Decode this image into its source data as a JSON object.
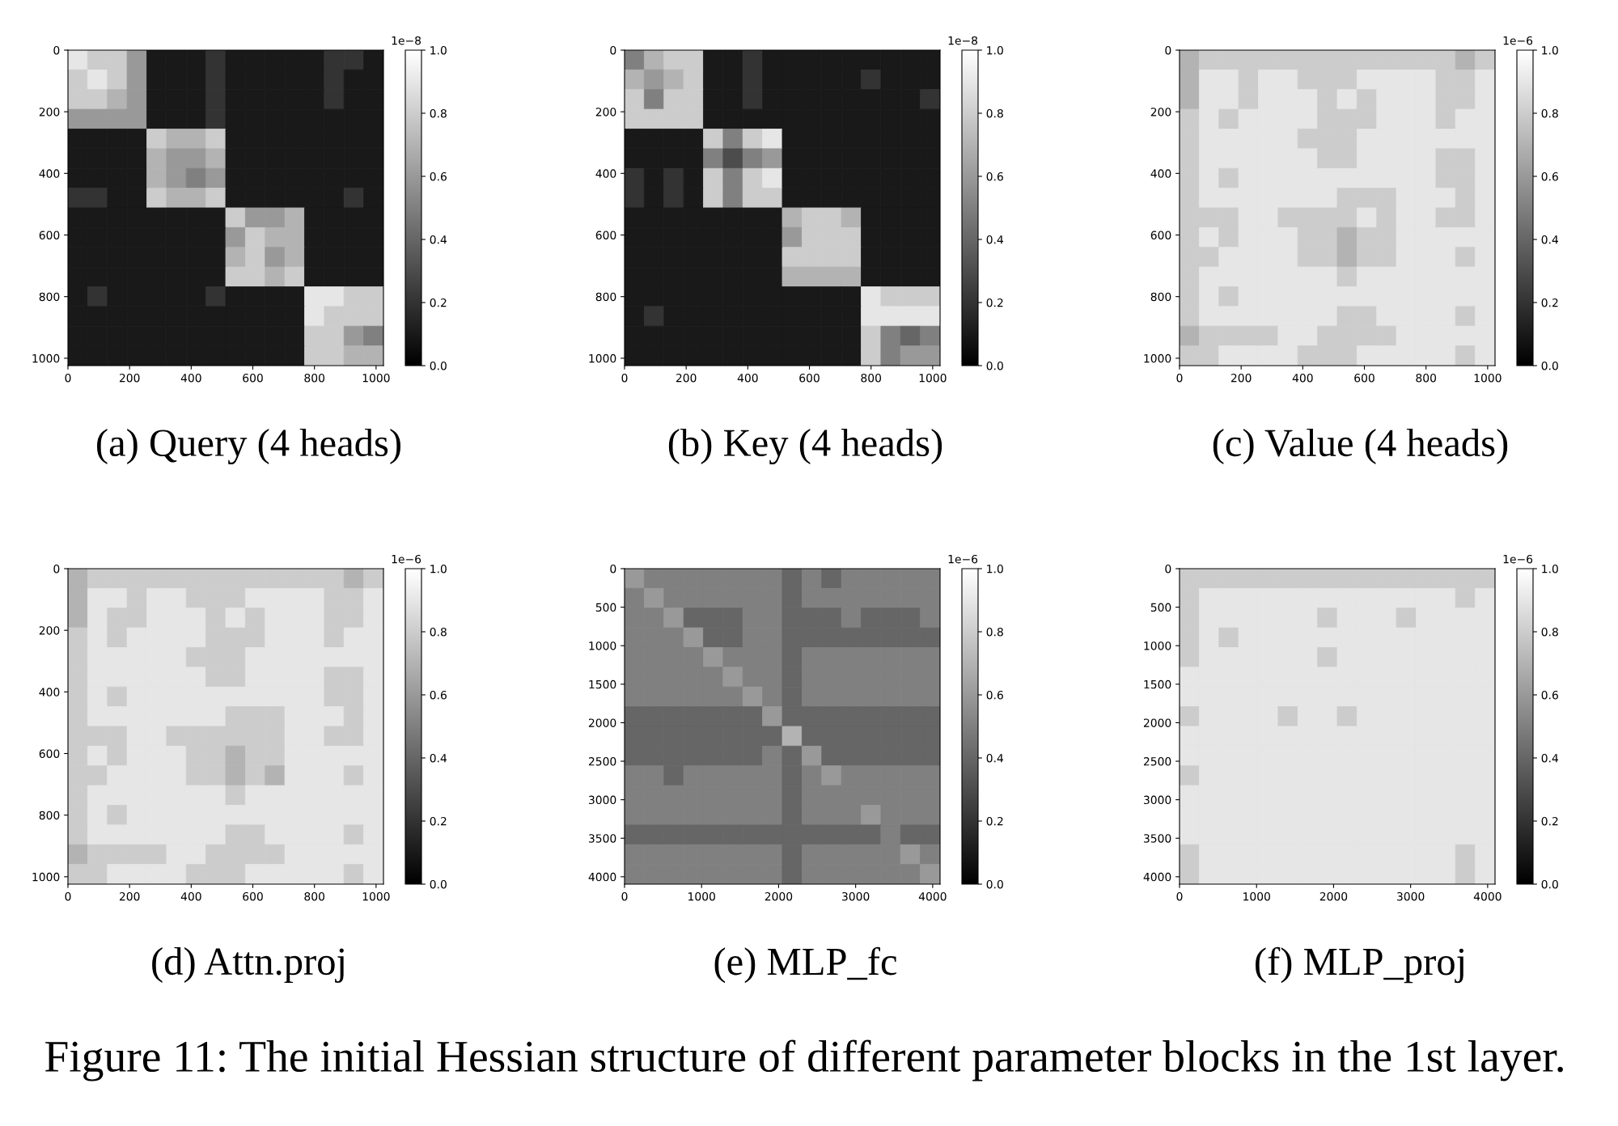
{
  "chart_data": [
    {
      "type": "heatmap",
      "title": "(a) Query (4 heads)",
      "xlim": [
        0,
        1024
      ],
      "ylim": [
        1024,
        0
      ],
      "xticks": [
        0,
        200,
        400,
        600,
        800,
        1000
      ],
      "yticks": [
        0,
        200,
        400,
        600,
        800,
        1000
      ],
      "clim": [
        0,
        1
      ],
      "cticks": [
        {
          "value": 0,
          "label": "0.0"
        },
        {
          "value": 0.2,
          "label": "0.2"
        },
        {
          "value": 0.4,
          "label": "0.4"
        },
        {
          "value": 0.6,
          "label": "0.6"
        },
        {
          "value": 0.8,
          "label": "0.8"
        },
        {
          "value": 1,
          "label": "1.0"
        }
      ],
      "clabel": "1e−8",
      "cells": [
        [
          0.9,
          0.8,
          0.8,
          0.6,
          0.1,
          0.1,
          0.1,
          0.2,
          0.1,
          0.1,
          0.1,
          0.1,
          0.1,
          0.2,
          0.2,
          0.1
        ],
        [
          0.8,
          0.9,
          0.8,
          0.6,
          0.1,
          0.1,
          0.1,
          0.2,
          0.1,
          0.1,
          0.1,
          0.1,
          0.1,
          0.2,
          0.1,
          0.1
        ],
        [
          0.8,
          0.8,
          0.7,
          0.6,
          0.1,
          0.1,
          0.1,
          0.2,
          0.1,
          0.1,
          0.1,
          0.1,
          0.1,
          0.2,
          0.1,
          0.1
        ],
        [
          0.6,
          0.6,
          0.6,
          0.6,
          0.1,
          0.1,
          0.1,
          0.2,
          0.1,
          0.1,
          0.1,
          0.1,
          0.1,
          0.1,
          0.1,
          0.1
        ],
        [
          0.1,
          0.1,
          0.1,
          0.1,
          0.8,
          0.7,
          0.7,
          0.8,
          0.1,
          0.1,
          0.1,
          0.1,
          0.1,
          0.1,
          0.1,
          0.1
        ],
        [
          0.1,
          0.1,
          0.1,
          0.1,
          0.7,
          0.6,
          0.6,
          0.7,
          0.1,
          0.1,
          0.1,
          0.1,
          0.1,
          0.1,
          0.1,
          0.1
        ],
        [
          0.1,
          0.1,
          0.1,
          0.1,
          0.7,
          0.6,
          0.5,
          0.6,
          0.1,
          0.1,
          0.1,
          0.1,
          0.1,
          0.1,
          0.1,
          0.1
        ],
        [
          0.2,
          0.2,
          0.1,
          0.1,
          0.8,
          0.7,
          0.7,
          0.8,
          0.1,
          0.1,
          0.1,
          0.1,
          0.1,
          0.1,
          0.2,
          0.1
        ],
        [
          0.1,
          0.1,
          0.1,
          0.1,
          0.1,
          0.1,
          0.1,
          0.1,
          0.8,
          0.6,
          0.6,
          0.7,
          0.1,
          0.1,
          0.1,
          0.1
        ],
        [
          0.1,
          0.1,
          0.1,
          0.1,
          0.1,
          0.1,
          0.1,
          0.1,
          0.6,
          0.8,
          0.7,
          0.7,
          0.1,
          0.1,
          0.1,
          0.1
        ],
        [
          0.1,
          0.1,
          0.1,
          0.1,
          0.1,
          0.1,
          0.1,
          0.1,
          0.7,
          0.8,
          0.6,
          0.7,
          0.1,
          0.1,
          0.1,
          0.1
        ],
        [
          0.1,
          0.1,
          0.1,
          0.1,
          0.1,
          0.1,
          0.1,
          0.1,
          0.8,
          0.8,
          0.7,
          0.8,
          0.1,
          0.1,
          0.1,
          0.1
        ],
        [
          0.1,
          0.2,
          0.1,
          0.1,
          0.1,
          0.1,
          0.1,
          0.2,
          0.1,
          0.1,
          0.1,
          0.1,
          0.9,
          0.9,
          0.8,
          0.8
        ],
        [
          0.1,
          0.1,
          0.1,
          0.1,
          0.1,
          0.1,
          0.1,
          0.1,
          0.1,
          0.1,
          0.1,
          0.1,
          0.9,
          0.8,
          0.8,
          0.8
        ],
        [
          0.1,
          0.1,
          0.1,
          0.1,
          0.1,
          0.1,
          0.1,
          0.1,
          0.1,
          0.1,
          0.1,
          0.1,
          0.8,
          0.8,
          0.6,
          0.5
        ],
        [
          0.1,
          0.1,
          0.1,
          0.1,
          0.1,
          0.1,
          0.1,
          0.1,
          0.1,
          0.1,
          0.1,
          0.1,
          0.8,
          0.8,
          0.7,
          0.7
        ]
      ]
    },
    {
      "type": "heatmap",
      "title": "(b) Key (4 heads)",
      "xlim": [
        0,
        1024
      ],
      "ylim": [
        1024,
        0
      ],
      "xticks": [
        0,
        200,
        400,
        600,
        800,
        1000
      ],
      "yticks": [
        0,
        200,
        400,
        600,
        800,
        1000
      ],
      "clim": [
        0,
        1
      ],
      "cticks": [
        {
          "value": 0,
          "label": "0.0"
        },
        {
          "value": 0.2,
          "label": "0.2"
        },
        {
          "value": 0.4,
          "label": "0.4"
        },
        {
          "value": 0.6,
          "label": "0.6"
        },
        {
          "value": 0.8,
          "label": "0.8"
        },
        {
          "value": 1,
          "label": "1.0"
        }
      ],
      "clabel": "1e−8",
      "cells": [
        [
          0.5,
          0.7,
          0.8,
          0.8,
          0.1,
          0.1,
          0.2,
          0.1,
          0.1,
          0.1,
          0.1,
          0.1,
          0.1,
          0.1,
          0.1,
          0.1
        ],
        [
          0.7,
          0.6,
          0.7,
          0.8,
          0.1,
          0.1,
          0.2,
          0.1,
          0.1,
          0.1,
          0.1,
          0.1,
          0.2,
          0.1,
          0.1,
          0.1
        ],
        [
          0.8,
          0.5,
          0.8,
          0.8,
          0.1,
          0.1,
          0.2,
          0.1,
          0.1,
          0.1,
          0.1,
          0.1,
          0.1,
          0.1,
          0.1,
          0.2
        ],
        [
          0.8,
          0.8,
          0.8,
          0.8,
          0.1,
          0.1,
          0.1,
          0.1,
          0.1,
          0.1,
          0.1,
          0.1,
          0.1,
          0.1,
          0.1,
          0.1
        ],
        [
          0.1,
          0.1,
          0.1,
          0.1,
          0.8,
          0.5,
          0.8,
          0.9,
          0.1,
          0.1,
          0.1,
          0.1,
          0.1,
          0.1,
          0.1,
          0.1
        ],
        [
          0.1,
          0.1,
          0.1,
          0.1,
          0.5,
          0.3,
          0.5,
          0.6,
          0.1,
          0.1,
          0.1,
          0.1,
          0.1,
          0.1,
          0.1,
          0.1
        ],
        [
          0.2,
          0.1,
          0.2,
          0.1,
          0.8,
          0.5,
          0.8,
          0.9,
          0.1,
          0.1,
          0.1,
          0.1,
          0.1,
          0.1,
          0.1,
          0.1
        ],
        [
          0.2,
          0.1,
          0.2,
          0.1,
          0.8,
          0.5,
          0.8,
          0.8,
          0.1,
          0.1,
          0.1,
          0.1,
          0.1,
          0.1,
          0.1,
          0.1
        ],
        [
          0.1,
          0.1,
          0.1,
          0.1,
          0.1,
          0.1,
          0.1,
          0.1,
          0.7,
          0.8,
          0.8,
          0.7,
          0.1,
          0.1,
          0.1,
          0.1
        ],
        [
          0.1,
          0.1,
          0.1,
          0.1,
          0.1,
          0.1,
          0.1,
          0.1,
          0.6,
          0.8,
          0.8,
          0.8,
          0.1,
          0.1,
          0.1,
          0.1
        ],
        [
          0.1,
          0.1,
          0.1,
          0.1,
          0.1,
          0.1,
          0.1,
          0.1,
          0.8,
          0.8,
          0.8,
          0.8,
          0.1,
          0.1,
          0.1,
          0.1
        ],
        [
          0.1,
          0.1,
          0.1,
          0.1,
          0.1,
          0.1,
          0.1,
          0.1,
          0.7,
          0.7,
          0.7,
          0.7,
          0.1,
          0.1,
          0.1,
          0.1
        ],
        [
          0.1,
          0.1,
          0.1,
          0.1,
          0.1,
          0.1,
          0.1,
          0.1,
          0.1,
          0.1,
          0.1,
          0.1,
          0.9,
          0.8,
          0.8,
          0.8
        ],
        [
          0.1,
          0.2,
          0.1,
          0.1,
          0.1,
          0.1,
          0.1,
          0.1,
          0.1,
          0.1,
          0.1,
          0.1,
          0.9,
          0.9,
          0.9,
          0.9
        ],
        [
          0.1,
          0.1,
          0.1,
          0.1,
          0.1,
          0.1,
          0.1,
          0.1,
          0.1,
          0.1,
          0.1,
          0.1,
          0.8,
          0.5,
          0.4,
          0.5
        ],
        [
          0.1,
          0.1,
          0.1,
          0.1,
          0.1,
          0.1,
          0.1,
          0.1,
          0.1,
          0.1,
          0.1,
          0.1,
          0.8,
          0.5,
          0.6,
          0.6
        ]
      ]
    },
    {
      "type": "heatmap",
      "title": "(c) Value (4 heads)",
      "xlim": [
        0,
        1024
      ],
      "ylim": [
        1024,
        0
      ],
      "xticks": [
        0,
        200,
        400,
        600,
        800,
        1000
      ],
      "yticks": [
        0,
        200,
        400,
        600,
        800,
        1000
      ],
      "clim": [
        0,
        1
      ],
      "cticks": [
        {
          "value": 0,
          "label": "0.0"
        },
        {
          "value": 0.2,
          "label": "0.2"
        },
        {
          "value": 0.4,
          "label": "0.4"
        },
        {
          "value": 0.6,
          "label": "0.6"
        },
        {
          "value": 0.8,
          "label": "0.8"
        },
        {
          "value": 1,
          "label": "1.0"
        }
      ],
      "clabel": "1e−6",
      "cells": [
        [
          0.7,
          0.8,
          0.8,
          0.8,
          0.8,
          0.8,
          0.8,
          0.8,
          0.8,
          0.8,
          0.8,
          0.8,
          0.8,
          0.8,
          0.7,
          0.8
        ],
        [
          0.7,
          0.9,
          0.9,
          0.8,
          0.9,
          0.9,
          0.8,
          0.8,
          0.8,
          0.9,
          0.9,
          0.9,
          0.9,
          0.8,
          0.8,
          0.9
        ],
        [
          0.7,
          0.9,
          0.9,
          0.8,
          0.9,
          0.9,
          0.9,
          0.8,
          0.9,
          0.8,
          0.9,
          0.9,
          0.9,
          0.8,
          0.8,
          0.9
        ],
        [
          0.8,
          0.9,
          0.8,
          0.9,
          0.9,
          0.9,
          0.9,
          0.8,
          0.8,
          0.8,
          0.9,
          0.9,
          0.9,
          0.8,
          0.9,
          0.9
        ],
        [
          0.8,
          0.9,
          0.9,
          0.9,
          0.9,
          0.9,
          0.8,
          0.8,
          0.8,
          0.9,
          0.9,
          0.9,
          0.9,
          0.9,
          0.9,
          0.9
        ],
        [
          0.8,
          0.9,
          0.9,
          0.9,
          0.9,
          0.9,
          0.9,
          0.8,
          0.8,
          0.9,
          0.9,
          0.9,
          0.9,
          0.8,
          0.8,
          0.9
        ],
        [
          0.8,
          0.9,
          0.8,
          0.9,
          0.9,
          0.9,
          0.9,
          0.9,
          0.9,
          0.9,
          0.9,
          0.9,
          0.9,
          0.8,
          0.8,
          0.9
        ],
        [
          0.8,
          0.9,
          0.9,
          0.9,
          0.9,
          0.9,
          0.9,
          0.9,
          0.8,
          0.8,
          0.8,
          0.9,
          0.9,
          0.9,
          0.8,
          0.9
        ],
        [
          0.8,
          0.8,
          0.8,
          0.9,
          0.9,
          0.8,
          0.8,
          0.8,
          0.8,
          0.9,
          0.8,
          0.9,
          0.9,
          0.8,
          0.8,
          0.9
        ],
        [
          0.8,
          0.9,
          0.8,
          0.9,
          0.9,
          0.9,
          0.8,
          0.8,
          0.7,
          0.8,
          0.8,
          0.9,
          0.9,
          0.9,
          0.9,
          0.9
        ],
        [
          0.8,
          0.8,
          0.9,
          0.9,
          0.9,
          0.9,
          0.8,
          0.8,
          0.7,
          0.8,
          0.8,
          0.9,
          0.9,
          0.9,
          0.8,
          0.9
        ],
        [
          0.8,
          0.9,
          0.9,
          0.9,
          0.9,
          0.9,
          0.9,
          0.9,
          0.8,
          0.9,
          0.9,
          0.9,
          0.9,
          0.9,
          0.9,
          0.9
        ],
        [
          0.8,
          0.9,
          0.8,
          0.9,
          0.9,
          0.9,
          0.9,
          0.9,
          0.9,
          0.9,
          0.9,
          0.9,
          0.9,
          0.9,
          0.9,
          0.9
        ],
        [
          0.8,
          0.9,
          0.9,
          0.9,
          0.9,
          0.9,
          0.9,
          0.9,
          0.8,
          0.8,
          0.9,
          0.9,
          0.9,
          0.9,
          0.8,
          0.9
        ],
        [
          0.7,
          0.8,
          0.8,
          0.8,
          0.8,
          0.9,
          0.9,
          0.8,
          0.8,
          0.8,
          0.8,
          0.9,
          0.9,
          0.9,
          0.9,
          0.9
        ],
        [
          0.8,
          0.8,
          0.9,
          0.9,
          0.9,
          0.9,
          0.8,
          0.8,
          0.8,
          0.9,
          0.9,
          0.9,
          0.9,
          0.9,
          0.8,
          0.9
        ]
      ]
    },
    {
      "type": "heatmap",
      "title": "(d) Attn.proj",
      "xlim": [
        0,
        1024
      ],
      "ylim": [
        1024,
        0
      ],
      "xticks": [
        0,
        200,
        400,
        600,
        800,
        1000
      ],
      "yticks": [
        0,
        200,
        400,
        600,
        800,
        1000
      ],
      "clim": [
        0,
        1
      ],
      "cticks": [
        {
          "value": 0,
          "label": "0.0"
        },
        {
          "value": 0.2,
          "label": "0.2"
        },
        {
          "value": 0.4,
          "label": "0.4"
        },
        {
          "value": 0.6,
          "label": "0.6"
        },
        {
          "value": 0.8,
          "label": "0.8"
        },
        {
          "value": 1,
          "label": "1.0"
        }
      ],
      "clabel": "1e−6",
      "cells": [
        [
          0.7,
          0.8,
          0.8,
          0.8,
          0.8,
          0.8,
          0.8,
          0.8,
          0.8,
          0.8,
          0.8,
          0.8,
          0.8,
          0.8,
          0.7,
          0.8
        ],
        [
          0.7,
          0.9,
          0.9,
          0.8,
          0.9,
          0.9,
          0.8,
          0.8,
          0.8,
          0.9,
          0.9,
          0.9,
          0.9,
          0.8,
          0.8,
          0.9
        ],
        [
          0.7,
          0.9,
          0.8,
          0.8,
          0.9,
          0.9,
          0.9,
          0.8,
          0.9,
          0.8,
          0.9,
          0.9,
          0.9,
          0.8,
          0.8,
          0.9
        ],
        [
          0.8,
          0.9,
          0.8,
          0.9,
          0.9,
          0.9,
          0.9,
          0.8,
          0.8,
          0.8,
          0.9,
          0.9,
          0.9,
          0.8,
          0.9,
          0.9
        ],
        [
          0.8,
          0.9,
          0.9,
          0.9,
          0.9,
          0.9,
          0.8,
          0.8,
          0.8,
          0.9,
          0.9,
          0.9,
          0.9,
          0.9,
          0.9,
          0.9
        ],
        [
          0.8,
          0.9,
          0.9,
          0.9,
          0.9,
          0.9,
          0.9,
          0.8,
          0.8,
          0.9,
          0.9,
          0.9,
          0.9,
          0.8,
          0.8,
          0.9
        ],
        [
          0.8,
          0.9,
          0.8,
          0.9,
          0.9,
          0.9,
          0.9,
          0.9,
          0.9,
          0.9,
          0.9,
          0.9,
          0.9,
          0.8,
          0.8,
          0.9
        ],
        [
          0.8,
          0.9,
          0.9,
          0.9,
          0.9,
          0.9,
          0.9,
          0.9,
          0.8,
          0.8,
          0.8,
          0.9,
          0.9,
          0.9,
          0.8,
          0.9
        ],
        [
          0.8,
          0.8,
          0.8,
          0.9,
          0.9,
          0.8,
          0.8,
          0.8,
          0.8,
          0.8,
          0.8,
          0.9,
          0.9,
          0.8,
          0.8,
          0.9
        ],
        [
          0.8,
          0.9,
          0.8,
          0.9,
          0.9,
          0.9,
          0.8,
          0.8,
          0.7,
          0.8,
          0.8,
          0.9,
          0.9,
          0.9,
          0.9,
          0.9
        ],
        [
          0.8,
          0.8,
          0.9,
          0.9,
          0.9,
          0.9,
          0.8,
          0.8,
          0.7,
          0.8,
          0.7,
          0.9,
          0.9,
          0.9,
          0.8,
          0.9
        ],
        [
          0.8,
          0.9,
          0.9,
          0.9,
          0.9,
          0.9,
          0.9,
          0.9,
          0.8,
          0.9,
          0.9,
          0.9,
          0.9,
          0.9,
          0.9,
          0.9
        ],
        [
          0.8,
          0.9,
          0.8,
          0.9,
          0.9,
          0.9,
          0.9,
          0.9,
          0.9,
          0.9,
          0.9,
          0.9,
          0.9,
          0.9,
          0.9,
          0.9
        ],
        [
          0.8,
          0.9,
          0.9,
          0.9,
          0.9,
          0.9,
          0.9,
          0.9,
          0.8,
          0.8,
          0.9,
          0.9,
          0.9,
          0.9,
          0.8,
          0.9
        ],
        [
          0.7,
          0.8,
          0.8,
          0.8,
          0.8,
          0.9,
          0.9,
          0.8,
          0.8,
          0.8,
          0.8,
          0.9,
          0.9,
          0.9,
          0.9,
          0.9
        ],
        [
          0.8,
          0.8,
          0.9,
          0.9,
          0.9,
          0.9,
          0.8,
          0.8,
          0.8,
          0.9,
          0.9,
          0.9,
          0.9,
          0.9,
          0.8,
          0.9
        ]
      ]
    },
    {
      "type": "heatmap",
      "title": "(e) MLP_fc",
      "xlim": [
        0,
        4096
      ],
      "ylim": [
        4096,
        0
      ],
      "xticks": [
        0,
        1000,
        2000,
        3000,
        4000
      ],
      "yticks": [
        0,
        500,
        1000,
        1500,
        2000,
        2500,
        3000,
        3500,
        4000
      ],
      "clim": [
        0,
        1
      ],
      "cticks": [
        {
          "value": 0,
          "label": "0.0"
        },
        {
          "value": 0.2,
          "label": "0.2"
        },
        {
          "value": 0.4,
          "label": "0.4"
        },
        {
          "value": 0.6,
          "label": "0.6"
        },
        {
          "value": 0.8,
          "label": "0.8"
        },
        {
          "value": 1,
          "label": "1.0"
        }
      ],
      "clabel": "1e−6",
      "cells": [
        [
          0.6,
          0.5,
          0.5,
          0.5,
          0.5,
          0.5,
          0.5,
          0.5,
          0.4,
          0.5,
          0.4,
          0.5,
          0.5,
          0.5,
          0.5,
          0.5
        ],
        [
          0.5,
          0.6,
          0.5,
          0.5,
          0.5,
          0.5,
          0.5,
          0.5,
          0.4,
          0.5,
          0.5,
          0.5,
          0.5,
          0.5,
          0.5,
          0.5
        ],
        [
          0.5,
          0.5,
          0.6,
          0.4,
          0.4,
          0.4,
          0.5,
          0.5,
          0.4,
          0.4,
          0.4,
          0.5,
          0.4,
          0.4,
          0.4,
          0.5
        ],
        [
          0.5,
          0.5,
          0.5,
          0.6,
          0.4,
          0.4,
          0.5,
          0.5,
          0.4,
          0.4,
          0.4,
          0.4,
          0.4,
          0.4,
          0.4,
          0.4
        ],
        [
          0.5,
          0.5,
          0.5,
          0.5,
          0.6,
          0.5,
          0.5,
          0.5,
          0.4,
          0.5,
          0.5,
          0.5,
          0.5,
          0.5,
          0.5,
          0.5
        ],
        [
          0.5,
          0.5,
          0.5,
          0.5,
          0.5,
          0.6,
          0.5,
          0.5,
          0.4,
          0.5,
          0.5,
          0.5,
          0.5,
          0.5,
          0.5,
          0.5
        ],
        [
          0.5,
          0.5,
          0.5,
          0.5,
          0.5,
          0.5,
          0.6,
          0.5,
          0.4,
          0.5,
          0.5,
          0.5,
          0.5,
          0.5,
          0.5,
          0.5
        ],
        [
          0.4,
          0.4,
          0.4,
          0.4,
          0.4,
          0.4,
          0.4,
          0.6,
          0.4,
          0.4,
          0.4,
          0.4,
          0.4,
          0.4,
          0.4,
          0.4
        ],
        [
          0.4,
          0.4,
          0.4,
          0.4,
          0.4,
          0.4,
          0.4,
          0.4,
          0.7,
          0.4,
          0.4,
          0.4,
          0.4,
          0.4,
          0.4,
          0.4
        ],
        [
          0.4,
          0.4,
          0.4,
          0.4,
          0.4,
          0.4,
          0.4,
          0.5,
          0.4,
          0.6,
          0.4,
          0.4,
          0.4,
          0.4,
          0.4,
          0.4
        ],
        [
          0.5,
          0.5,
          0.4,
          0.5,
          0.5,
          0.5,
          0.5,
          0.5,
          0.4,
          0.5,
          0.6,
          0.5,
          0.5,
          0.5,
          0.5,
          0.5
        ],
        [
          0.5,
          0.5,
          0.5,
          0.5,
          0.5,
          0.5,
          0.5,
          0.5,
          0.4,
          0.5,
          0.5,
          0.5,
          0.5,
          0.5,
          0.5,
          0.5
        ],
        [
          0.5,
          0.5,
          0.5,
          0.5,
          0.5,
          0.5,
          0.5,
          0.5,
          0.4,
          0.5,
          0.5,
          0.5,
          0.6,
          0.5,
          0.5,
          0.5
        ],
        [
          0.4,
          0.4,
          0.4,
          0.4,
          0.4,
          0.4,
          0.4,
          0.4,
          0.4,
          0.4,
          0.4,
          0.4,
          0.4,
          0.5,
          0.4,
          0.4
        ],
        [
          0.5,
          0.5,
          0.5,
          0.5,
          0.5,
          0.5,
          0.5,
          0.5,
          0.4,
          0.5,
          0.5,
          0.5,
          0.5,
          0.5,
          0.6,
          0.5
        ],
        [
          0.5,
          0.5,
          0.5,
          0.5,
          0.5,
          0.5,
          0.5,
          0.5,
          0.4,
          0.5,
          0.5,
          0.5,
          0.5,
          0.5,
          0.5,
          0.6
        ]
      ]
    },
    {
      "type": "heatmap",
      "title": "(f) MLP_proj",
      "xlim": [
        0,
        4096
      ],
      "ylim": [
        4096,
        0
      ],
      "xticks": [
        0,
        1000,
        2000,
        3000,
        4000
      ],
      "yticks": [
        0,
        500,
        1000,
        1500,
        2000,
        2500,
        3000,
        3500,
        4000
      ],
      "clim": [
        0,
        1
      ],
      "cticks": [
        {
          "value": 0,
          "label": "0.0"
        },
        {
          "value": 0.2,
          "label": "0.2"
        },
        {
          "value": 0.4,
          "label": "0.4"
        },
        {
          "value": 0.6,
          "label": "0.6"
        },
        {
          "value": 0.8,
          "label": "0.8"
        },
        {
          "value": 1,
          "label": "1.0"
        }
      ],
      "clabel": "1e−6",
      "cells": [
        [
          0.8,
          0.8,
          0.8,
          0.8,
          0.8,
          0.8,
          0.8,
          0.8,
          0.8,
          0.8,
          0.8,
          0.8,
          0.8,
          0.8,
          0.8,
          0.8
        ],
        [
          0.8,
          0.9,
          0.9,
          0.9,
          0.9,
          0.9,
          0.9,
          0.9,
          0.9,
          0.9,
          0.9,
          0.9,
          0.9,
          0.9,
          0.8,
          0.9
        ],
        [
          0.8,
          0.9,
          0.9,
          0.9,
          0.9,
          0.9,
          0.9,
          0.8,
          0.9,
          0.9,
          0.9,
          0.8,
          0.9,
          0.9,
          0.9,
          0.9
        ],
        [
          0.8,
          0.9,
          0.8,
          0.9,
          0.9,
          0.9,
          0.9,
          0.9,
          0.9,
          0.9,
          0.9,
          0.9,
          0.9,
          0.9,
          0.9,
          0.9
        ],
        [
          0.8,
          0.9,
          0.9,
          0.9,
          0.9,
          0.9,
          0.9,
          0.8,
          0.9,
          0.9,
          0.9,
          0.9,
          0.9,
          0.9,
          0.9,
          0.9
        ],
        [
          0.9,
          0.9,
          0.9,
          0.9,
          0.9,
          0.9,
          0.9,
          0.9,
          0.9,
          0.9,
          0.9,
          0.9,
          0.9,
          0.9,
          0.9,
          0.9
        ],
        [
          0.9,
          0.9,
          0.9,
          0.9,
          0.9,
          0.9,
          0.9,
          0.9,
          0.9,
          0.9,
          0.9,
          0.9,
          0.9,
          0.9,
          0.9,
          0.9
        ],
        [
          0.8,
          0.9,
          0.9,
          0.9,
          0.9,
          0.8,
          0.9,
          0.9,
          0.8,
          0.9,
          0.9,
          0.9,
          0.9,
          0.9,
          0.9,
          0.9
        ],
        [
          0.9,
          0.9,
          0.9,
          0.9,
          0.9,
          0.9,
          0.9,
          0.9,
          0.9,
          0.9,
          0.9,
          0.9,
          0.9,
          0.9,
          0.9,
          0.9
        ],
        [
          0.9,
          0.9,
          0.9,
          0.9,
          0.9,
          0.9,
          0.9,
          0.9,
          0.9,
          0.9,
          0.9,
          0.9,
          0.9,
          0.9,
          0.9,
          0.9
        ],
        [
          0.8,
          0.9,
          0.9,
          0.9,
          0.9,
          0.9,
          0.9,
          0.9,
          0.9,
          0.9,
          0.9,
          0.9,
          0.9,
          0.9,
          0.9,
          0.9
        ],
        [
          0.9,
          0.9,
          0.9,
          0.9,
          0.9,
          0.9,
          0.9,
          0.9,
          0.9,
          0.9,
          0.9,
          0.9,
          0.9,
          0.9,
          0.9,
          0.9
        ],
        [
          0.9,
          0.9,
          0.9,
          0.9,
          0.9,
          0.9,
          0.9,
          0.9,
          0.9,
          0.9,
          0.9,
          0.9,
          0.9,
          0.9,
          0.9,
          0.9
        ],
        [
          0.9,
          0.9,
          0.9,
          0.9,
          0.9,
          0.9,
          0.9,
          0.9,
          0.9,
          0.9,
          0.9,
          0.9,
          0.9,
          0.9,
          0.9,
          0.9
        ],
        [
          0.8,
          0.9,
          0.9,
          0.9,
          0.9,
          0.9,
          0.9,
          0.9,
          0.9,
          0.9,
          0.9,
          0.9,
          0.9,
          0.9,
          0.8,
          0.9
        ],
        [
          0.8,
          0.9,
          0.9,
          0.9,
          0.9,
          0.9,
          0.9,
          0.9,
          0.9,
          0.9,
          0.9,
          0.9,
          0.9,
          0.9,
          0.8,
          0.9
        ]
      ]
    },
    {
      "type": "other",
      "annotations": [
        "Figure 11: The initial Hessian structure of different parameter blocks in the 1st layer."
      ]
    }
  ]
}
